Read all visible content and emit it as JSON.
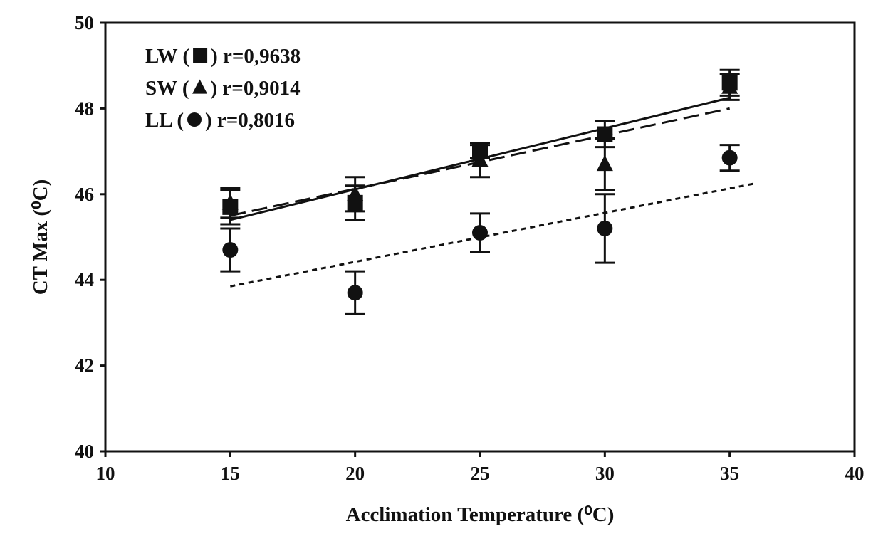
{
  "chart_data": {
    "type": "scatter",
    "xlabel": "Acclimation Temperature (⁰C)",
    "ylabel": "CT Max (⁰C)",
    "xlim": [
      10,
      40
    ],
    "ylim": [
      40,
      50
    ],
    "xticks": [
      "10",
      "15",
      "20",
      "25",
      "30",
      "35",
      "40"
    ],
    "yticks": [
      "40",
      "42",
      "44",
      "46",
      "48",
      "50"
    ],
    "grid": false,
    "legend_position": "top-left",
    "legend": [
      {
        "label": "LW (",
        "marker": "square",
        "suffix": ") r=0,9638"
      },
      {
        "label": "SW (",
        "marker": "triangle",
        "suffix": ") r=0,9014"
      },
      {
        "label": "LL (",
        "marker": "circle",
        "suffix": ") r=0,8016"
      }
    ],
    "series": [
      {
        "key": "LW",
        "marker": "square",
        "line_style": "solid",
        "x": [
          15,
          20,
          25,
          30,
          35
        ],
        "y": [
          45.7,
          45.8,
          47.0,
          47.4,
          48.6
        ],
        "err": [
          0.4,
          0.4,
          0.15,
          0.3,
          0.3
        ],
        "fit": [
          [
            15,
            45.4
          ],
          [
            35,
            48.25
          ]
        ]
      },
      {
        "key": "SW",
        "marker": "triangle",
        "line_style": "dashed",
        "x": [
          15,
          20,
          25,
          30,
          35
        ],
        "y": [
          45.8,
          46.0,
          46.8,
          46.7,
          48.5
        ],
        "err": [
          0.35,
          0.4,
          0.4,
          0.6,
          0.3
        ],
        "fit": [
          [
            15,
            45.5
          ],
          [
            35,
            48.0
          ]
        ]
      },
      {
        "key": "LL",
        "marker": "circle",
        "line_style": "dotted",
        "x": [
          15,
          20,
          25,
          30,
          35
        ],
        "y": [
          44.7,
          43.7,
          45.1,
          45.2,
          46.85
        ],
        "err": [
          0.5,
          0.5,
          0.45,
          0.8,
          0.3
        ],
        "fit": [
          [
            15,
            43.85
          ],
          [
            36,
            46.25
          ]
        ]
      }
    ]
  }
}
